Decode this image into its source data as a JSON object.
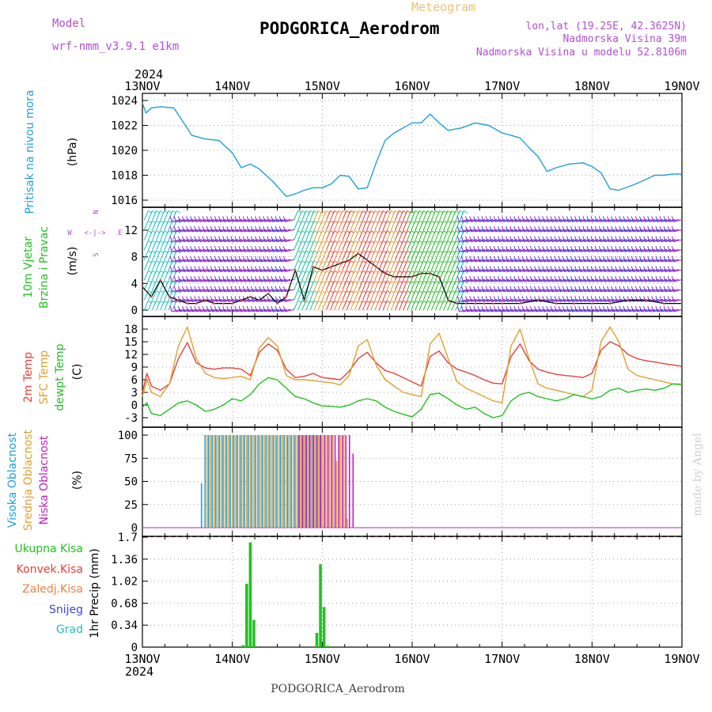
{
  "header": {
    "model_label": "Model",
    "model_name": "wrf-nmm_v3.9.1 e1km",
    "meteogram_label": "Meteogram",
    "station": "PODGORICA_Aerodrom",
    "lonlat": "lon,lat (19.25E, 42.3625N)",
    "altitude": "Nadmorska Visina 39m",
    "model_altitude": "Nadmorska Visina u modelu 52.8106m",
    "footer_station": "PODGORICA_Aerodrom",
    "credit": "made by Angel"
  },
  "colors": {
    "pressure": "#1e9fe0",
    "temp2m": "#e8403a",
    "sfc": "#e0a030",
    "dewpt": "#22c022",
    "high_cloud": "#1e9fe0",
    "mid_cloud": "#e0a030",
    "low_cloud": "#c020c0",
    "precip_total": "#22c022",
    "wind_label": "#22c022",
    "header_purple": "#b050d0",
    "header_orange": "#f0c070"
  },
  "x_axis": {
    "year": "2024",
    "ticks": [
      "13NOV",
      "14NOV",
      "15NOV",
      "16NOV",
      "17NOV",
      "18NOV",
      "19NOV"
    ]
  },
  "panels": {
    "pressure": {
      "label_line1": "Pritisak na nivou mora",
      "unit": "(hPa)",
      "y_ticks": [
        "1016",
        "1018",
        "1020",
        "1022",
        "1024"
      ]
    },
    "wind": {
      "label_line1": "10m Vjetar",
      "label_line2": "Brzina i Pravac",
      "unit": "(m/s)",
      "y_ticks": [
        "0",
        "4",
        "8",
        "12"
      ],
      "compass_w": "W",
      "compass_e": "E",
      "compass_top": "N",
      "compass_bottom": "S",
      "compass_arrows": "<-|->"
    },
    "temperature": {
      "label_line1": "2m Temp",
      "label_line2": "SFC Temp",
      "label_line3": "dewpt Temp",
      "unit": "(C)",
      "y_ticks": [
        "-3",
        "0",
        "3",
        "6",
        "9",
        "12",
        "15",
        "18"
      ]
    },
    "cloud": {
      "label_line1": "Visoka Oblacnost",
      "label_line2": "Srednja Oblacnost",
      "label_line3": "Niska Oblacnost",
      "unit": "(%)",
      "y_ticks": [
        "0",
        "25",
        "50",
        "75",
        "100"
      ]
    },
    "precip": {
      "legend": [
        "Ukupna Kisa",
        "Konvek.Kisa",
        "Zaledj.Kisa",
        "Snijeg",
        "Grad"
      ],
      "legend_colors": [
        "#22c022",
        "#e8403a",
        "#f08040",
        "#4040e0",
        "#20c0c0"
      ],
      "unit": "1hr Precip (mm)",
      "y_ticks": [
        "0",
        "0.34",
        "0.68",
        "1.02",
        "1.36",
        "1.7"
      ]
    }
  },
  "chart_data": [
    {
      "type": "line",
      "ylabel": "(hPa)",
      "ylim": [
        1016,
        1024
      ],
      "x_days": [
        0,
        0.04,
        0.1,
        0.2,
        0.35,
        0.45,
        0.55,
        0.7,
        0.85,
        1.0,
        1.1,
        1.2,
        1.3,
        1.45,
        1.6,
        1.7,
        1.8,
        1.9,
        2.0,
        2.1,
        2.2,
        2.3,
        2.4,
        2.5,
        2.6,
        2.7,
        2.8,
        2.9,
        3.0,
        3.1,
        3.2,
        3.3,
        3.4,
        3.55,
        3.7,
        3.85,
        4.0,
        4.1,
        4.2,
        4.3,
        4.4,
        4.5,
        4.6,
        4.75,
        4.9,
        5.0,
        5.1,
        5.2,
        5.3,
        5.45,
        5.55,
        5.7,
        5.8,
        5.9,
        6.0
      ],
      "series": [
        {
          "values": [
            1023.8,
            1023.0,
            1023.4,
            1023.5,
            1023.4,
            1022.3,
            1021.2,
            1020.9,
            1020.8,
            1019.8,
            1018.6,
            1018.9,
            1018.5,
            1017.5,
            1016.3,
            1016.5,
            1016.8,
            1017.0,
            1017.0,
            1017.3,
            1018.0,
            1017.9,
            1016.9,
            1017.0,
            1019.0,
            1020.8,
            1021.4,
            1021.8,
            1022.2,
            1022.2,
            1022.9,
            1022.2,
            1021.6,
            1021.8,
            1022.2,
            1022.0,
            1021.4,
            1021.2,
            1021.0,
            1020.2,
            1019.5,
            1018.3,
            1018.6,
            1018.9,
            1019.0,
            1018.7,
            1018.2,
            1016.9,
            1016.8,
            1017.2,
            1017.5,
            1018.0,
            1018.0,
            1018.1,
            1018.1
          ]
        }
      ]
    },
    {
      "type": "scatter",
      "ylabel": "(m/s)",
      "ylim": [
        -1,
        15
      ],
      "x_days": [
        0,
        0.1,
        0.2,
        0.3,
        0.4,
        0.5,
        0.6,
        0.7,
        0.8,
        0.9,
        1.0,
        1.1,
        1.2,
        1.3,
        1.4,
        1.5,
        1.6,
        1.7,
        1.8,
        1.9,
        2.0,
        2.1,
        2.2,
        2.3,
        2.4,
        2.5,
        2.6,
        2.7,
        2.8,
        2.9,
        3.0,
        3.1,
        3.2,
        3.3,
        3.4,
        3.5,
        3.6,
        3.7,
        3.8,
        3.9,
        4.0,
        4.2,
        4.4,
        4.6,
        4.8,
        5.0,
        5.2,
        5.4,
        5.6,
        5.8,
        6.0
      ],
      "series": [
        {
          "values": [
            3.5,
            2.0,
            4.5,
            2.0,
            1.5,
            1.0,
            1.0,
            1.5,
            1.0,
            1.0,
            1.0,
            1.5,
            2.0,
            1.5,
            2.5,
            1.0,
            2.0,
            6.0,
            1.5,
            6.5,
            6.0,
            6.5,
            7.0,
            7.5,
            8.5,
            7.5,
            6.5,
            5.5,
            5.0,
            5.0,
            5.0,
            5.5,
            5.5,
            5.0,
            1.5,
            1.0,
            1.0,
            1.0,
            1.0,
            1.0,
            1.0,
            1.0,
            1.5,
            1.0,
            1.0,
            1.0,
            1.0,
            1.5,
            1.5,
            1.0,
            1.0
          ]
        }
      ]
    },
    {
      "type": "line",
      "ylabel": "(C)",
      "ylim": [
        -4.5,
        19.5
      ],
      "x_days": [
        0,
        0.05,
        0.1,
        0.2,
        0.3,
        0.4,
        0.5,
        0.6,
        0.7,
        0.8,
        0.9,
        1.0,
        1.1,
        1.2,
        1.3,
        1.4,
        1.5,
        1.6,
        1.7,
        1.8,
        1.9,
        2.0,
        2.1,
        2.2,
        2.3,
        2.4,
        2.5,
        2.6,
        2.7,
        2.8,
        2.9,
        3.0,
        3.1,
        3.2,
        3.3,
        3.4,
        3.5,
        3.6,
        3.7,
        3.8,
        3.9,
        4.0,
        4.1,
        4.2,
        4.3,
        4.4,
        4.5,
        4.6,
        4.7,
        4.8,
        4.9,
        5.0,
        5.1,
        5.2,
        5.3,
        5.4,
        5.5,
        5.6,
        5.7,
        5.8,
        5.9,
        6.0
      ],
      "series": [
        {
          "name": "2m Temp",
          "values": [
            3.0,
            7.5,
            4.5,
            3.5,
            5.0,
            11.0,
            14.8,
            10.0,
            8.8,
            8.5,
            8.8,
            8.8,
            8.5,
            7.0,
            12.5,
            14.5,
            13.0,
            8.5,
            6.5,
            6.8,
            7.5,
            6.5,
            6.3,
            6.0,
            8.0,
            11.0,
            12.5,
            10.0,
            8.2,
            7.5,
            6.5,
            5.5,
            4.5,
            11.5,
            12.8,
            10.0,
            8.5,
            7.8,
            7.0,
            6.0,
            5.2,
            5.0,
            11.5,
            14.5,
            10.5,
            8.5,
            7.8,
            7.3,
            7.0,
            6.8,
            6.5,
            7.5,
            13.0,
            15.0,
            14.0,
            12.0,
            11.0,
            10.5,
            10.2,
            9.8,
            9.5,
            9.2
          ]
        },
        {
          "name": "SFC Temp",
          "values": [
            2.0,
            6.0,
            3.0,
            2.0,
            5.0,
            14.0,
            18.5,
            11.0,
            7.5,
            6.5,
            6.3,
            6.5,
            6.8,
            6.0,
            13.5,
            16.0,
            14.0,
            7.0,
            6.0,
            6.0,
            5.8,
            5.5,
            5.3,
            4.8,
            7.0,
            14.0,
            15.5,
            9.5,
            6.0,
            4.5,
            3.0,
            2.5,
            2.0,
            14.5,
            17.0,
            11.0,
            5.5,
            4.0,
            3.0,
            2.0,
            1.0,
            0.5,
            14.0,
            18.0,
            11.0,
            5.0,
            4.0,
            3.5,
            3.0,
            2.5,
            2.0,
            3.5,
            15.0,
            18.5,
            15.0,
            8.5,
            7.0,
            6.5,
            6.0,
            5.5,
            5.0,
            5.0
          ]
        },
        {
          "name": "dewpt Temp",
          "values": [
            -0.5,
            0.5,
            -2.0,
            -2.5,
            -1.0,
            0.5,
            1.0,
            0.0,
            -1.5,
            -1.0,
            0.0,
            1.5,
            1.0,
            2.5,
            5.0,
            6.5,
            6.0,
            4.0,
            2.0,
            1.5,
            0.5,
            -0.2,
            -0.3,
            -0.5,
            0.0,
            1.0,
            1.5,
            1.0,
            -0.5,
            -1.5,
            -2.2,
            -2.8,
            -1.0,
            2.5,
            2.8,
            1.5,
            0.0,
            -1.0,
            -0.5,
            -2.0,
            -3.0,
            -2.5,
            1.0,
            2.5,
            3.0,
            2.0,
            1.5,
            1.0,
            1.5,
            2.5,
            2.0,
            1.5,
            2.0,
            3.5,
            4.0,
            3.0,
            3.5,
            3.8,
            3.5,
            4.0,
            5.0,
            4.8
          ]
        }
      ]
    },
    {
      "type": "bar",
      "ylabel": "(%)",
      "ylim": [
        0,
        100
      ],
      "x_days": [
        0.68,
        0.72,
        0.76,
        0.8,
        0.84,
        0.88,
        0.92,
        0.96,
        1.0,
        1.04,
        1.08,
        1.12,
        1.16,
        1.2,
        1.24,
        1.28,
        1.32,
        1.36,
        1.4,
        1.44,
        1.48,
        1.52,
        1.56,
        1.6,
        1.64,
        1.68,
        1.72,
        1.76,
        1.8,
        1.84,
        1.88,
        1.92,
        1.96,
        2.0,
        2.04,
        2.08,
        2.12,
        2.16,
        2.2,
        2.24,
        2.28,
        2.32
      ],
      "series": [
        {
          "name": "Visoka Oblacnost",
          "values": [
            48,
            100,
            100,
            100,
            100,
            100,
            100,
            100,
            100,
            100,
            100,
            100,
            100,
            100,
            100,
            100,
            100,
            100,
            100,
            100,
            100,
            100,
            100,
            100,
            100,
            100,
            100,
            100,
            100,
            100,
            100,
            100,
            100,
            100,
            0,
            0,
            0,
            0,
            0,
            0,
            0,
            0
          ]
        },
        {
          "name": "Srednja Oblacnost",
          "values": [
            0,
            100,
            100,
            100,
            100,
            100,
            100,
            100,
            100,
            100,
            100,
            100,
            100,
            100,
            100,
            100,
            100,
            100,
            100,
            100,
            100,
            100,
            100,
            100,
            100,
            100,
            100,
            100,
            100,
            100,
            100,
            100,
            100,
            100,
            100,
            100,
            100,
            72,
            100,
            100,
            10,
            0
          ]
        },
        {
          "name": "Niska Oblacnost",
          "values": [
            0,
            0,
            0,
            0,
            0,
            0,
            0,
            0,
            0,
            0,
            0,
            0,
            0,
            0,
            0,
            0,
            0,
            0,
            0,
            0,
            0,
            0,
            0,
            0,
            0,
            0,
            100,
            100,
            100,
            100,
            100,
            100,
            100,
            100,
            100,
            100,
            100,
            100,
            100,
            100,
            100,
            80
          ]
        }
      ]
    },
    {
      "type": "bar",
      "ylabel": "1hr Precip (mm)",
      "ylim": [
        0,
        1.7
      ],
      "x_days": [
        1.12,
        1.16,
        1.2,
        1.24,
        1.94,
        1.98,
        2.02,
        2.06
      ],
      "series": [
        {
          "name": "Ukupna Kisa",
          "values": [
            0.03,
            0.98,
            1.62,
            0.42,
            0.22,
            1.28,
            0.62,
            0.02
          ]
        }
      ]
    }
  ]
}
